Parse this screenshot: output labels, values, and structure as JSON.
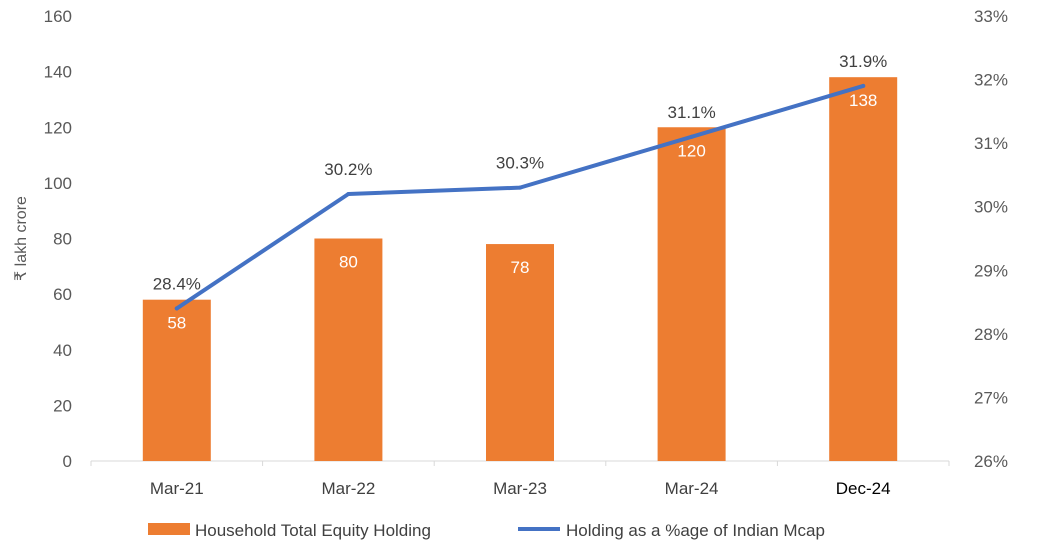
{
  "chart_data": {
    "type": "bar",
    "categories": [
      "Mar-21",
      "Mar-22",
      "Mar-23",
      "Mar-24",
      "Dec-24"
    ],
    "series": [
      {
        "name": "Household Total Equity Holding",
        "type": "bar",
        "axis": "left",
        "values": [
          58,
          80,
          78,
          120,
          138
        ],
        "labels": [
          "58",
          "80",
          "78",
          "120",
          "138"
        ],
        "color": "#ED7D31"
      },
      {
        "name": "Holding as a %age of Indian Mcap",
        "type": "line",
        "axis": "right",
        "values": [
          28.4,
          30.2,
          30.3,
          31.1,
          31.9
        ],
        "labels": [
          "28.4%",
          "30.2%",
          "30.3%",
          "31.1%",
          "31.9%"
        ],
        "color": "#4472C4"
      }
    ],
    "ylabel": "₹ lakh crore",
    "ylim": [
      0,
      160
    ],
    "yticks": [
      0,
      20,
      40,
      60,
      80,
      100,
      120,
      140,
      160
    ],
    "ytick_labels": [
      "0",
      "20",
      "40",
      "60",
      "80",
      "100",
      "120",
      "140",
      "160"
    ],
    "y2lim": [
      26,
      33
    ],
    "y2ticks": [
      26,
      27,
      28,
      29,
      30,
      31,
      32,
      33
    ],
    "y2tick_labels": [
      "26%",
      "27%",
      "28%",
      "29%",
      "30%",
      "31%",
      "32%",
      "33%"
    ],
    "grid": false,
    "legend_position": "bottom"
  }
}
